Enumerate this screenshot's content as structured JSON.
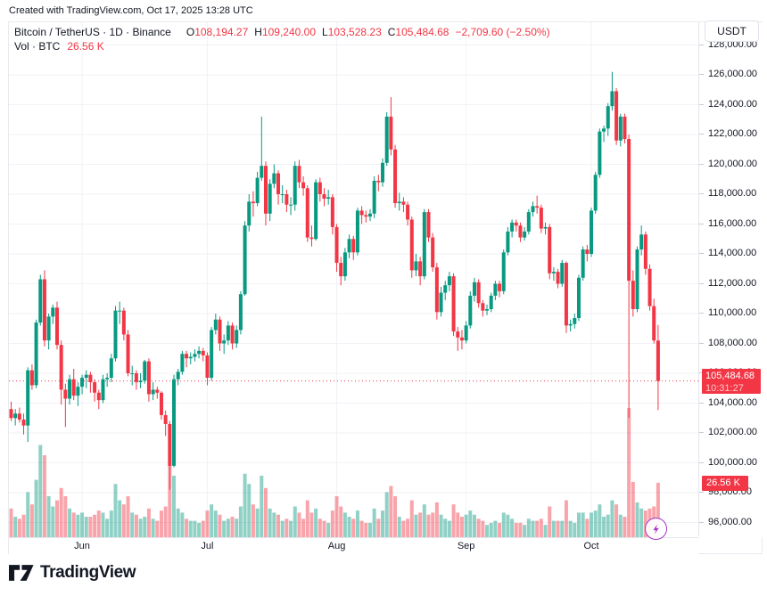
{
  "attribution": "Created with TradingView.com, Oct 17, 2025 13:28 UTC",
  "legend": {
    "title": "Bitcoin / TetherUS · 1D · Binance",
    "ohlc": [
      {
        "k": "O",
        "v": "108,194.27"
      },
      {
        "k": "H",
        "v": "109,240.00"
      },
      {
        "k": "L",
        "v": "103,528.23"
      },
      {
        "k": "C",
        "v": "105,484.68"
      }
    ],
    "change": "−2,709.60 (−2.50%)",
    "vol_label": "Vol · BTC",
    "vol_value": "26.56 K"
  },
  "price_axis": {
    "currency": "USDT",
    "tick_values": [
      128000,
      126000,
      124000,
      122000,
      120000,
      118000,
      116000,
      114000,
      112000,
      110000,
      108000,
      106000,
      104000,
      102000,
      100000,
      98000,
      96000
    ],
    "tick_texts": [
      "128,000.00",
      "126,000.00",
      "124,000.00",
      "122,000.00",
      "120,000.00",
      "118,000.00",
      "116,000.00",
      "114,000.00",
      "112,000.00",
      "110,000.00",
      "108,000.00",
      "106,000.00",
      "104,000.00",
      "102,000.00",
      "100,000.00",
      "98,000.00",
      "96,000.00"
    ],
    "last_price_badge": {
      "price": "105,484.68",
      "countdown": "10:31:27"
    },
    "volume_badge": "26.56 K"
  },
  "time_axis": {
    "labels": [
      {
        "text": "Jun",
        "index": 17
      },
      {
        "text": "Jul",
        "index": 47
      },
      {
        "text": "Aug",
        "index": 78
      },
      {
        "text": "Sep",
        "index": 109
      },
      {
        "text": "Oct",
        "index": 139
      }
    ]
  },
  "logo": {
    "text": "TradingView"
  },
  "colors": {
    "up": "#089981",
    "down": "#f23645",
    "grid": "#f0f2f6",
    "badge": "#f23645",
    "axis_text": "#131722",
    "flash_purple": "#a435c9",
    "logo_dark": "#131722"
  },
  "chart_data": {
    "type": "candlestick+volume",
    "title": "Bitcoin / TetherUS",
    "exchange": "Binance",
    "interval": "1D",
    "price_unit": "thousand USDT",
    "volume_unit": "K BTC",
    "x_start_date": "2025-05-15",
    "x_end_date": "2025-10-17",
    "ylim_kusdt": [
      95,
      129.5
    ],
    "last_close": 105.48468,
    "current_bar": {
      "open": 108.19427,
      "high": 109.24,
      "low": 103.52823,
      "close": 105.48468,
      "volume_k_btc": 26.56
    },
    "candles_ohlcv": [
      [
        103.6,
        104.1,
        102.8,
        103.0,
        14
      ],
      [
        103.0,
        103.6,
        102.5,
        103.3,
        10
      ],
      [
        103.3,
        103.7,
        102.7,
        102.9,
        9
      ],
      [
        102.9,
        103.3,
        101.9,
        102.5,
        11
      ],
      [
        102.5,
        106.4,
        101.4,
        106.2,
        22
      ],
      [
        106.2,
        106.6,
        104.9,
        105.2,
        16
      ],
      [
        105.2,
        109.6,
        105.0,
        109.4,
        28
      ],
      [
        109.4,
        112.6,
        109.2,
        112.3,
        45
      ],
      [
        112.3,
        112.9,
        107.8,
        108.2,
        40
      ],
      [
        108.2,
        110.0,
        107.6,
        109.8,
        20
      ],
      [
        109.8,
        110.6,
        109.3,
        110.4,
        15
      ],
      [
        110.4,
        110.8,
        107.6,
        107.9,
        18
      ],
      [
        107.9,
        108.2,
        103.9,
        104.9,
        24
      ],
      [
        104.9,
        105.3,
        102.4,
        104.3,
        20
      ],
      [
        104.3,
        105.9,
        103.9,
        105.6,
        14
      ],
      [
        105.6,
        106.3,
        104.2,
        104.5,
        12
      ],
      [
        104.5,
        105.4,
        103.8,
        105.1,
        11
      ],
      [
        105.1,
        105.9,
        104.6,
        105.7,
        12
      ],
      [
        105.7,
        106.2,
        105.0,
        105.9,
        10
      ],
      [
        105.9,
        106.1,
        104.7,
        105.4,
        10
      ],
      [
        105.4,
        105.6,
        104.1,
        104.7,
        11
      ],
      [
        104.7,
        104.9,
        103.6,
        104.2,
        13
      ],
      [
        104.2,
        105.9,
        104.0,
        105.6,
        12
      ],
      [
        105.6,
        106.0,
        105.1,
        105.7,
        9
      ],
      [
        105.7,
        107.3,
        105.4,
        107.0,
        13
      ],
      [
        107.0,
        110.5,
        106.8,
        110.2,
        26
      ],
      [
        110.2,
        110.8,
        109.3,
        110.2,
        18
      ],
      [
        110.2,
        110.4,
        108.2,
        108.6,
        16
      ],
      [
        108.6,
        108.9,
        105.8,
        106.0,
        20
      ],
      [
        106.0,
        106.5,
        105.2,
        106.0,
        12
      ],
      [
        106.0,
        106.2,
        104.9,
        105.4,
        11
      ],
      [
        105.4,
        106.0,
        105.0,
        105.5,
        9
      ],
      [
        105.5,
        106.9,
        105.3,
        106.8,
        10
      ],
      [
        106.8,
        107.0,
        104.1,
        104.6,
        14
      ],
      [
        104.6,
        105.4,
        104.2,
        104.9,
        9
      ],
      [
        104.9,
        105.1,
        104.3,
        104.7,
        8
      ],
      [
        104.7,
        104.8,
        102.9,
        103.2,
        13
      ],
      [
        103.2,
        103.5,
        101.8,
        102.6,
        15
      ],
      [
        102.6,
        102.8,
        98.2,
        99.8,
        35
      ],
      [
        99.8,
        105.9,
        99.7,
        105.6,
        30
      ],
      [
        105.6,
        106.3,
        105.2,
        106.1,
        14
      ],
      [
        106.1,
        107.5,
        105.9,
        107.3,
        12
      ],
      [
        107.3,
        107.5,
        106.4,
        107.0,
        9
      ],
      [
        107.0,
        107.4,
        106.6,
        107.1,
        8
      ],
      [
        107.1,
        107.6,
        106.8,
        107.3,
        8
      ],
      [
        107.3,
        107.8,
        107.0,
        107.5,
        7
      ],
      [
        107.5,
        107.7,
        106.8,
        107.2,
        8
      ],
      [
        107.2,
        107.4,
        105.2,
        105.7,
        13
      ],
      [
        105.7,
        109.1,
        105.5,
        108.9,
        16
      ],
      [
        108.9,
        110.0,
        108.6,
        109.6,
        13
      ],
      [
        109.6,
        109.8,
        107.5,
        108.0,
        11
      ],
      [
        108.0,
        108.6,
        107.3,
        108.2,
        8
      ],
      [
        108.2,
        109.5,
        107.9,
        109.2,
        9
      ],
      [
        109.2,
        109.4,
        107.6,
        108.0,
        10
      ],
      [
        108.0,
        109.2,
        107.7,
        108.9,
        9
      ],
      [
        108.9,
        111.5,
        108.6,
        111.3,
        15
      ],
      [
        111.3,
        116.2,
        111.2,
        115.9,
        31
      ],
      [
        115.9,
        118.0,
        115.5,
        117.5,
        26
      ],
      [
        117.5,
        118.2,
        116.5,
        117.4,
        16
      ],
      [
        117.4,
        119.5,
        117.2,
        119.1,
        14
      ],
      [
        119.1,
        123.2,
        118.9,
        119.9,
        30
      ],
      [
        119.9,
        120.2,
        115.9,
        116.7,
        24
      ],
      [
        116.7,
        119.0,
        116.2,
        118.7,
        14
      ],
      [
        118.7,
        120.0,
        118.4,
        119.4,
        12
      ],
      [
        119.4,
        119.6,
        117.3,
        118.0,
        11
      ],
      [
        118.0,
        118.6,
        117.4,
        118.0,
        8
      ],
      [
        118.0,
        118.3,
        116.8,
        117.3,
        9
      ],
      [
        117.3,
        117.8,
        116.6,
        117.3,
        8
      ],
      [
        117.3,
        120.2,
        116.9,
        119.9,
        15
      ],
      [
        119.9,
        120.3,
        118.4,
        118.8,
        12
      ],
      [
        118.8,
        119.2,
        117.9,
        118.4,
        9
      ],
      [
        118.4,
        118.6,
        114.8,
        115.1,
        18
      ],
      [
        115.1,
        115.9,
        114.5,
        115.0,
        12
      ],
      [
        115.0,
        119.0,
        114.9,
        118.8,
        14
      ],
      [
        118.8,
        119.1,
        117.5,
        118.0,
        9
      ],
      [
        118.0,
        118.4,
        117.2,
        117.7,
        8
      ],
      [
        117.7,
        118.3,
        117.3,
        117.8,
        7
      ],
      [
        117.8,
        118.0,
        115.3,
        115.8,
        13
      ],
      [
        115.8,
        116.0,
        112.8,
        113.4,
        20
      ],
      [
        113.4,
        113.8,
        111.9,
        112.5,
        15
      ],
      [
        112.5,
        114.4,
        112.2,
        114.1,
        12
      ],
      [
        114.1,
        115.3,
        113.7,
        115.0,
        10
      ],
      [
        115.0,
        115.2,
        113.6,
        114.1,
        9
      ],
      [
        114.1,
        117.1,
        113.9,
        116.9,
        13
      ],
      [
        116.9,
        117.2,
        116.0,
        116.6,
        8
      ],
      [
        116.6,
        116.9,
        116.1,
        116.5,
        7
      ],
      [
        116.5,
        117.0,
        116.2,
        116.7,
        7
      ],
      [
        116.7,
        119.2,
        116.4,
        118.9,
        14
      ],
      [
        118.9,
        119.3,
        118.2,
        118.8,
        9
      ],
      [
        118.8,
        120.4,
        118.5,
        120.1,
        13
      ],
      [
        120.1,
        123.5,
        119.9,
        123.2,
        22
      ],
      [
        123.2,
        124.5,
        120.6,
        121.0,
        25
      ],
      [
        121.0,
        121.3,
        117.1,
        117.4,
        20
      ],
      [
        117.4,
        118.1,
        116.9,
        117.5,
        10
      ],
      [
        117.5,
        117.8,
        116.8,
        117.3,
        8
      ],
      [
        117.3,
        117.5,
        115.9,
        116.3,
        9
      ],
      [
        116.3,
        116.5,
        112.4,
        112.9,
        18
      ],
      [
        112.9,
        114.0,
        112.5,
        113.5,
        11
      ],
      [
        113.5,
        113.8,
        111.9,
        112.5,
        12
      ],
      [
        112.5,
        117.0,
        112.3,
        116.8,
        16
      ],
      [
        116.8,
        117.0,
        114.8,
        115.1,
        11
      ],
      [
        115.1,
        115.4,
        112.8,
        113.1,
        12
      ],
      [
        113.1,
        113.4,
        109.6,
        110.1,
        17
      ],
      [
        110.1,
        111.8,
        109.8,
        111.4,
        11
      ],
      [
        111.4,
        112.2,
        110.9,
        111.9,
        9
      ],
      [
        111.9,
        112.8,
        111.5,
        112.5,
        8
      ],
      [
        112.5,
        112.7,
        108.5,
        108.8,
        16
      ],
      [
        108.8,
        109.1,
        107.5,
        108.4,
        12
      ],
      [
        108.4,
        108.9,
        107.6,
        108.2,
        10
      ],
      [
        108.2,
        109.5,
        108.0,
        109.2,
        11
      ],
      [
        109.2,
        111.5,
        109.0,
        111.2,
        13
      ],
      [
        111.2,
        112.4,
        110.8,
        112.1,
        11
      ],
      [
        112.1,
        112.3,
        110.4,
        110.7,
        9
      ],
      [
        110.7,
        110.9,
        109.8,
        110.2,
        8
      ],
      [
        110.2,
        110.6,
        109.9,
        110.3,
        6
      ],
      [
        110.3,
        111.4,
        110.1,
        111.2,
        7
      ],
      [
        111.2,
        112.2,
        110.9,
        112.0,
        8
      ],
      [
        112.0,
        112.2,
        111.1,
        111.5,
        7
      ],
      [
        111.5,
        114.3,
        111.3,
        114.1,
        12
      ],
      [
        114.1,
        115.8,
        113.9,
        115.5,
        11
      ],
      [
        115.5,
        116.3,
        115.1,
        116.1,
        9
      ],
      [
        116.1,
        116.3,
        115.5,
        115.9,
        7
      ],
      [
        115.9,
        116.1,
        114.8,
        115.1,
        7
      ],
      [
        115.1,
        115.8,
        114.9,
        115.5,
        6
      ],
      [
        115.5,
        117.0,
        115.3,
        116.8,
        9
      ],
      [
        116.8,
        117.5,
        116.5,
        117.2,
        8
      ],
      [
        117.2,
        117.9,
        116.7,
        117.1,
        8
      ],
      [
        117.1,
        117.3,
        115.4,
        115.7,
        9
      ],
      [
        115.7,
        116.1,
        115.3,
        115.8,
        6
      ],
      [
        115.8,
        116.0,
        112.3,
        112.7,
        15
      ],
      [
        112.7,
        113.1,
        112.2,
        112.8,
        8
      ],
      [
        112.8,
        113.0,
        111.7,
        112.0,
        8
      ],
      [
        112.0,
        113.6,
        111.8,
        113.4,
        8
      ],
      [
        113.4,
        113.5,
        108.7,
        109.2,
        18
      ],
      [
        109.2,
        109.6,
        108.8,
        109.3,
        8
      ],
      [
        109.3,
        110.0,
        109.0,
        109.7,
        7
      ],
      [
        109.7,
        112.6,
        109.5,
        112.4,
        12
      ],
      [
        112.4,
        114.5,
        112.2,
        114.3,
        12
      ],
      [
        114.3,
        114.6,
        113.5,
        114.0,
        9
      ],
      [
        114.0,
        117.1,
        113.8,
        116.9,
        12
      ],
      [
        116.9,
        119.5,
        116.7,
        119.3,
        13
      ],
      [
        119.3,
        122.4,
        119.1,
        122.2,
        16
      ],
      [
        122.2,
        122.6,
        121.5,
        122.4,
        10
      ],
      [
        122.4,
        124.1,
        121.9,
        123.9,
        11
      ],
      [
        123.9,
        126.2,
        123.6,
        124.9,
        18
      ],
      [
        124.9,
        125.1,
        121.3,
        121.6,
        16
      ],
      [
        121.6,
        123.4,
        121.2,
        123.2,
        11
      ],
      [
        123.2,
        123.4,
        121.4,
        121.7,
        10
      ],
      [
        121.7,
        122.0,
        103.0,
        112.2,
        63
      ],
      [
        112.2,
        112.9,
        109.8,
        110.3,
        27
      ],
      [
        110.3,
        114.5,
        110.1,
        114.3,
        17
      ],
      [
        114.3,
        115.9,
        113.9,
        115.3,
        14
      ],
      [
        115.3,
        115.5,
        112.6,
        113.0,
        13
      ],
      [
        113.0,
        113.3,
        110.2,
        110.5,
        14
      ],
      [
        110.5,
        111.0,
        108.0,
        108.2,
        15
      ],
      [
        108.19,
        109.24,
        103.53,
        105.48,
        26.56
      ]
    ]
  }
}
